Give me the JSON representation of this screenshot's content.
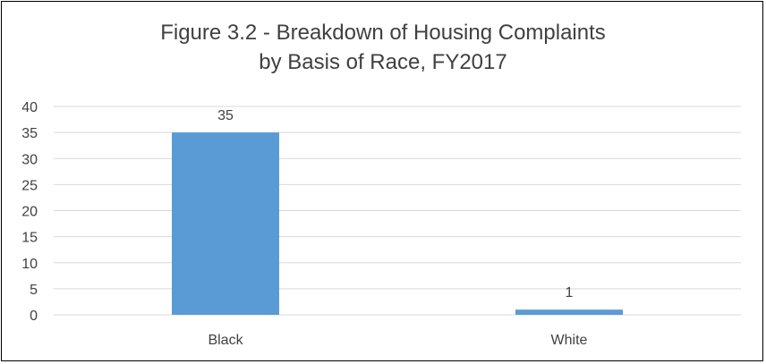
{
  "chart_data": {
    "type": "bar",
    "title_lines": [
      "Figure 3.2 - Breakdown of Housing Complaints",
      "by Basis of Race, FY2017"
    ],
    "categories": [
      "Black",
      "White"
    ],
    "values": [
      35,
      1
    ],
    "data_labels": [
      "35",
      "1"
    ],
    "y_ticks": [
      "0",
      "5",
      "10",
      "15",
      "20",
      "25",
      "30",
      "35",
      "40"
    ],
    "ylim": [
      0,
      40
    ],
    "grid": true,
    "legend": "none",
    "bar_color": "#5B9BD5",
    "grid_color": "#D9D9D9",
    "text_color": "#404040"
  }
}
